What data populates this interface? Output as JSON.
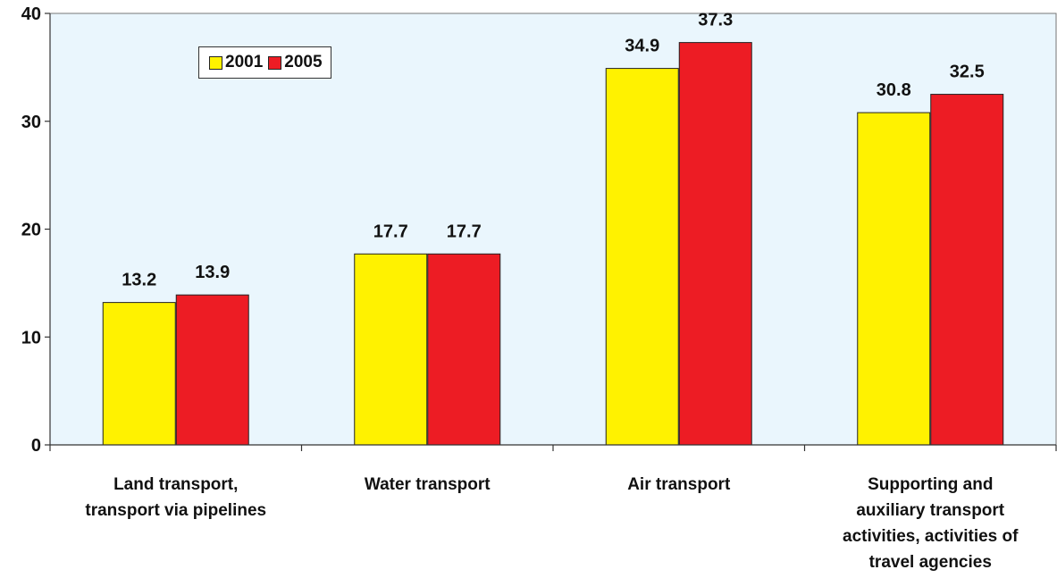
{
  "chart_data": {
    "type": "bar",
    "categories": [
      [
        "Land transport,",
        "transport via pipelines"
      ],
      [
        "Water transport"
      ],
      [
        "Air transport"
      ],
      [
        "Supporting and",
        "auxiliary transport",
        "activities, activities of",
        "travel agencies"
      ]
    ],
    "series": [
      {
        "name": "2001",
        "color": "#FFF200",
        "values": [
          13.2,
          17.7,
          34.9,
          30.8
        ]
      },
      {
        "name": "2005",
        "color": "#ED1C24",
        "values": [
          13.9,
          17.7,
          37.3,
          32.5
        ]
      }
    ],
    "value_labels": [
      [
        "13.2",
        "17.7",
        "34.9",
        "30.8"
      ],
      [
        "13.9",
        "17.7",
        "37.3",
        "32.5"
      ]
    ],
    "ylim": [
      0,
      40
    ],
    "yticks": [
      0,
      10,
      20,
      30,
      40
    ],
    "ytick_labels": [
      "0",
      "10",
      "20",
      "30",
      "40"
    ],
    "grid": false,
    "plot_background": "#EAF6FD",
    "legend_position": "top-left"
  }
}
